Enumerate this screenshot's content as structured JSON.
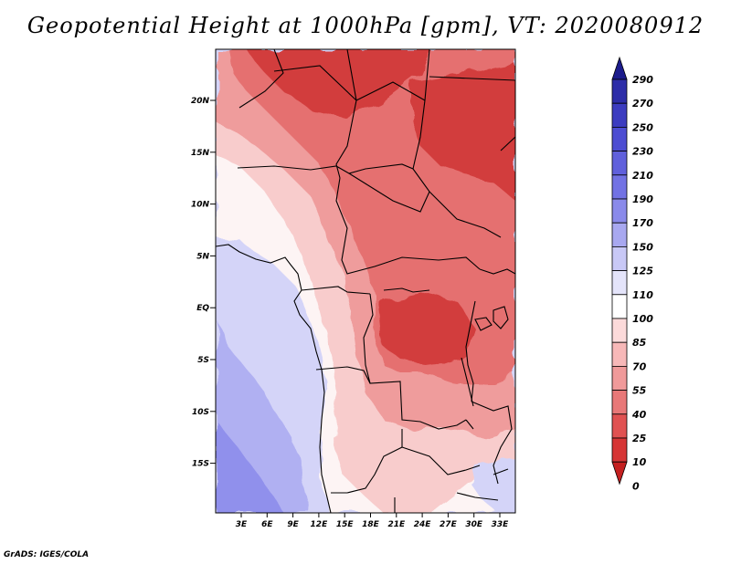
{
  "title": "Geopotential Height at 1000hPa [gpm], VT: 2020080912",
  "credit": "GrADS: IGES/COLA",
  "lat_labels": [
    "20N",
    "15N",
    "10N",
    "5N",
    "EQ",
    "5S",
    "10S",
    "15S"
  ],
  "lon_labels": [
    "3E",
    "6E",
    "9E",
    "12E",
    "15E",
    "18E",
    "21E",
    "24E",
    "27E",
    "30E",
    "33E"
  ],
  "colorbar": {
    "labels": [
      "290",
      "270",
      "250",
      "230",
      "210",
      "190",
      "170",
      "150",
      "125",
      "110",
      "100",
      "85",
      "70",
      "55",
      "40",
      "25",
      "10",
      "0"
    ],
    "colors": [
      "#1c1c8c",
      "#2d2da8",
      "#3c3cc0",
      "#4d4dd2",
      "#6060dc",
      "#7272e4",
      "#8a8aea",
      "#a8a8f0",
      "#c8c8f6",
      "#e4e4fa",
      "#ffffff",
      "#fcdada",
      "#f7b8b8",
      "#f09a9a",
      "#e87878",
      "#e05252",
      "#d63636",
      "#c42020"
    ]
  },
  "map_colors": {
    "ocean_deep": "#9090ec",
    "ocean_mid": "#b0b0f2",
    "ocean_light": "#d4d4f8",
    "land_white": "#fdf4f4",
    "land_pink": "#f8cccc",
    "land_salmon": "#ef9c9c",
    "land_red": "#e57070",
    "land_dark": "#d23c3c"
  }
}
